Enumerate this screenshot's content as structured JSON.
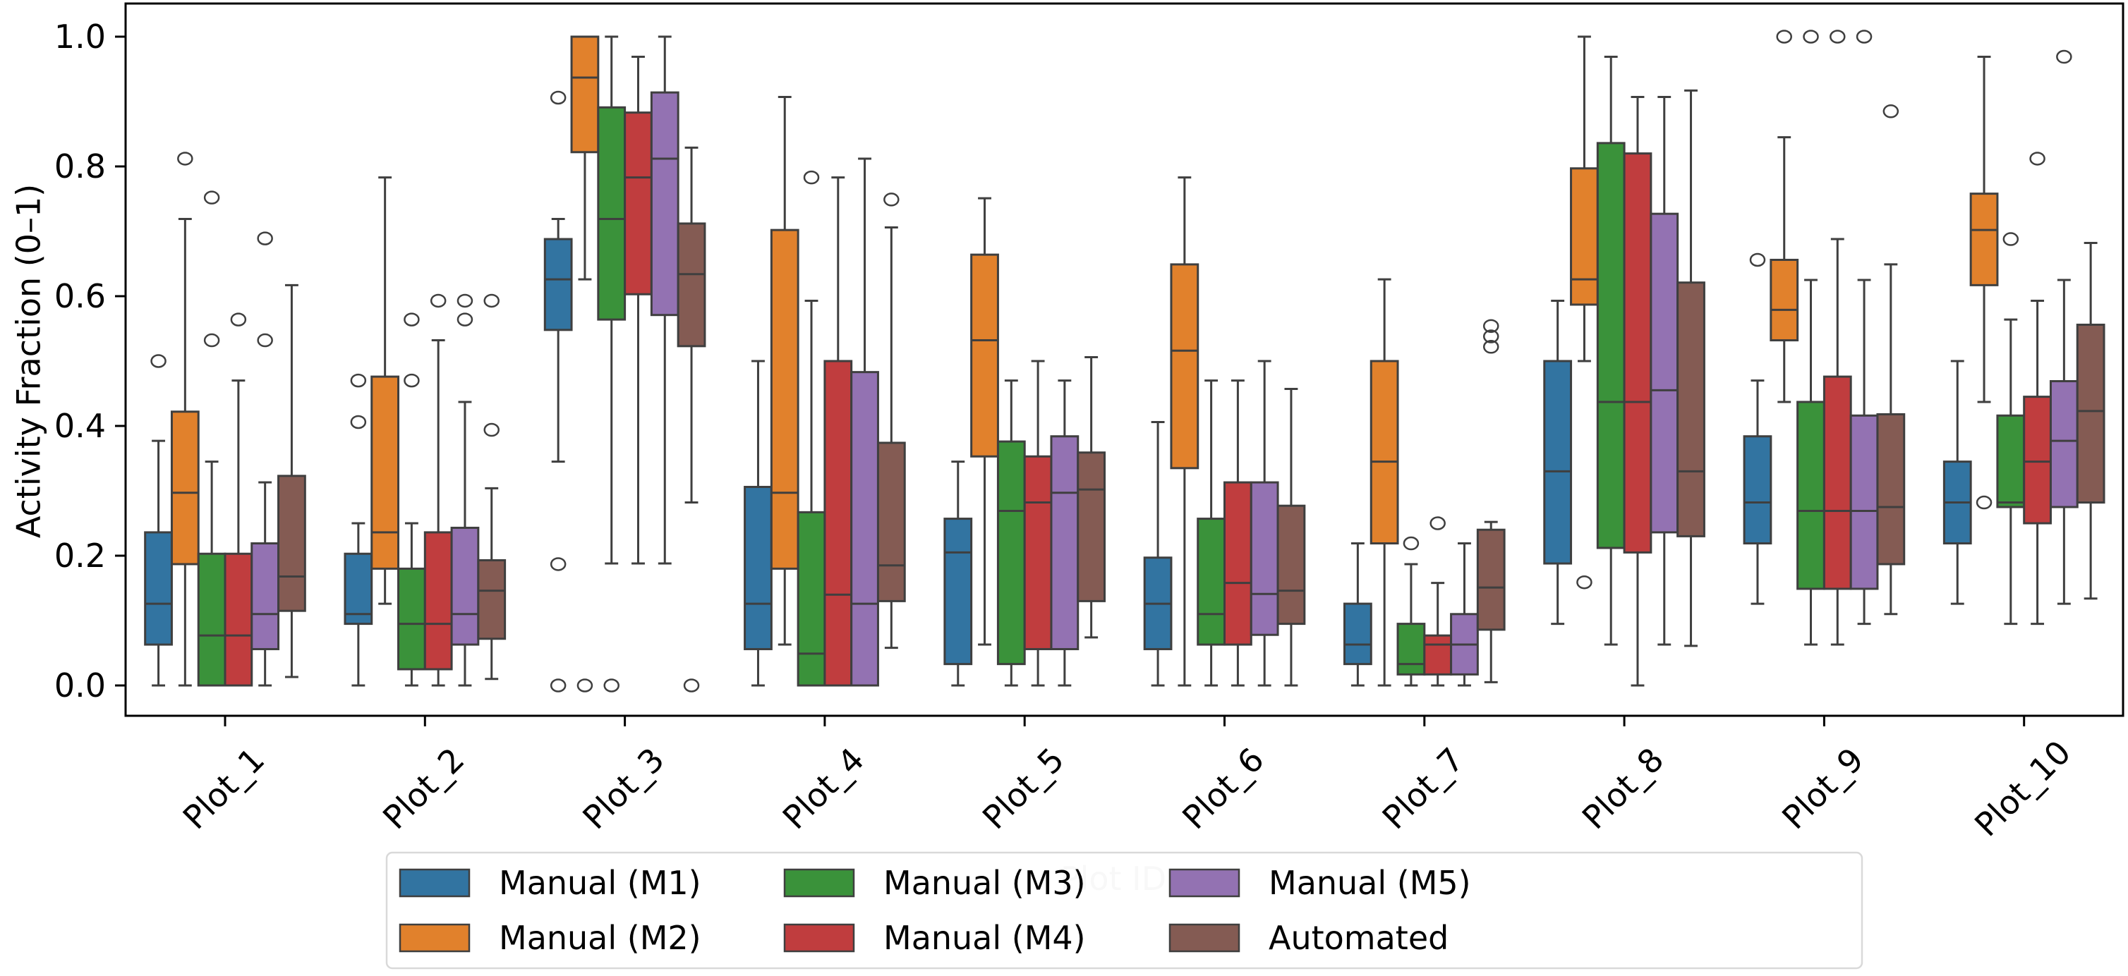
{
  "chart_data": {
    "type": "box",
    "title": "",
    "xlabel": "Plot ID",
    "ylabel": "Activity Fraction (0–1)",
    "ylim": [
      -0.047,
      1.051
    ],
    "yticks": [
      "0.0",
      "0.2",
      "0.4",
      "0.6",
      "0.8",
      "1.0"
    ],
    "ytick_values": [
      0.0,
      0.2,
      0.4,
      0.6,
      0.8,
      1.0
    ],
    "grid": false,
    "legend_position": "bottom-center (below axis, 4 columns)",
    "categories": [
      "Plot_1",
      "Plot_2",
      "Plot_3",
      "Plot_4",
      "Plot_5",
      "Plot_6",
      "Plot_7",
      "Plot_8",
      "Plot_9",
      "Plot_10"
    ],
    "series": [
      {
        "name": "Manual (M1)",
        "color": "#3274a1",
        "boxes": [
          {
            "whislo": 0.0,
            "q1": 0.063,
            "med": 0.126,
            "q3": 0.236,
            "whishi": 0.377,
            "fliers": [
              0.5
            ]
          },
          {
            "whislo": 0.0,
            "q1": 0.095,
            "med": 0.11,
            "q3": 0.203,
            "whishi": 0.25,
            "fliers": [
              0.406,
              0.47
            ]
          },
          {
            "whislo": 0.345,
            "q1": 0.548,
            "med": 0.626,
            "q3": 0.688,
            "whishi": 0.719,
            "fliers": [
              0.0,
              0.187,
              0.906
            ]
          },
          {
            "whislo": 0.0,
            "q1": 0.056,
            "med": 0.126,
            "q3": 0.306,
            "whishi": 0.5,
            "fliers": []
          },
          {
            "whislo": 0.0,
            "q1": 0.033,
            "med": 0.205,
            "q3": 0.257,
            "whishi": 0.345,
            "fliers": []
          },
          {
            "whislo": 0.0,
            "q1": 0.056,
            "med": 0.126,
            "q3": 0.197,
            "whishi": 0.406,
            "fliers": []
          },
          {
            "whislo": 0.0,
            "q1": 0.033,
            "med": 0.063,
            "q3": 0.126,
            "whishi": 0.219,
            "fliers": []
          },
          {
            "whislo": 0.095,
            "q1": 0.188,
            "med": 0.33,
            "q3": 0.5,
            "whishi": 0.593,
            "fliers": []
          },
          {
            "whislo": 0.126,
            "q1": 0.219,
            "med": 0.282,
            "q3": 0.384,
            "whishi": 0.47,
            "fliers": [
              0.656
            ]
          },
          {
            "whislo": 0.126,
            "q1": 0.219,
            "med": 0.282,
            "q3": 0.345,
            "whishi": 0.5,
            "fliers": []
          }
        ]
      },
      {
        "name": "Manual (M2)",
        "color": "#e1812c",
        "boxes": [
          {
            "whislo": 0.0,
            "q1": 0.187,
            "med": 0.297,
            "q3": 0.422,
            "whishi": 0.719,
            "fliers": [
              0.812
            ]
          },
          {
            "whislo": 0.126,
            "q1": 0.18,
            "med": 0.236,
            "q3": 0.476,
            "whishi": 0.783,
            "fliers": []
          },
          {
            "whislo": 0.626,
            "q1": 0.822,
            "med": 0.937,
            "q3": 1.0,
            "whishi": 1.0,
            "fliers": [
              0.0
            ]
          },
          {
            "whislo": 0.063,
            "q1": 0.18,
            "med": 0.297,
            "q3": 0.702,
            "whishi": 0.907,
            "fliers": []
          },
          {
            "whislo": 0.063,
            "q1": 0.353,
            "med": 0.532,
            "q3": 0.664,
            "whishi": 0.751,
            "fliers": []
          },
          {
            "whislo": 0.0,
            "q1": 0.335,
            "med": 0.516,
            "q3": 0.649,
            "whishi": 0.783,
            "fliers": []
          },
          {
            "whislo": 0.0,
            "q1": 0.219,
            "med": 0.345,
            "q3": 0.5,
            "whishi": 0.626,
            "fliers": []
          },
          {
            "whislo": 0.5,
            "q1": 0.587,
            "med": 0.626,
            "q3": 0.797,
            "whishi": 1.0,
            "fliers": [
              0.159
            ]
          },
          {
            "whislo": 0.437,
            "q1": 0.532,
            "med": 0.579,
            "q3": 0.656,
            "whishi": 0.845,
            "fliers": [
              1.0
            ]
          },
          {
            "whislo": 0.437,
            "q1": 0.617,
            "med": 0.702,
            "q3": 0.758,
            "whishi": 0.969,
            "fliers": [
              0.282
            ]
          }
        ]
      },
      {
        "name": "Manual (M3)",
        "color": "#3a923a",
        "boxes": [
          {
            "whislo": 0.0,
            "q1": 0.0,
            "med": 0.077,
            "q3": 0.203,
            "whishi": 0.345,
            "fliers": [
              0.532,
              0.752
            ]
          },
          {
            "whislo": 0.0,
            "q1": 0.025,
            "med": 0.095,
            "q3": 0.18,
            "whishi": 0.25,
            "fliers": [
              0.47,
              0.564
            ]
          },
          {
            "whislo": 0.188,
            "q1": 0.564,
            "med": 0.719,
            "q3": 0.891,
            "whishi": 1.0,
            "fliers": [
              0.0
            ]
          },
          {
            "whislo": 0.0,
            "q1": 0.0,
            "med": 0.049,
            "q3": 0.267,
            "whishi": 0.593,
            "fliers": [
              0.783
            ]
          },
          {
            "whislo": 0.0,
            "q1": 0.033,
            "med": 0.269,
            "q3": 0.376,
            "whishi": 0.47,
            "fliers": []
          },
          {
            "whislo": 0.0,
            "q1": 0.063,
            "med": 0.11,
            "q3": 0.257,
            "whishi": 0.47,
            "fliers": []
          },
          {
            "whislo": 0.0,
            "q1": 0.017,
            "med": 0.033,
            "q3": 0.095,
            "whishi": 0.187,
            "fliers": [
              0.219
            ]
          },
          {
            "whislo": 0.063,
            "q1": 0.212,
            "med": 0.437,
            "q3": 0.836,
            "whishi": 0.969,
            "fliers": []
          },
          {
            "whislo": 0.063,
            "q1": 0.149,
            "med": 0.269,
            "q3": 0.437,
            "whishi": 0.625,
            "fliers": [
              1.0
            ]
          },
          {
            "whislo": 0.095,
            "q1": 0.275,
            "med": 0.282,
            "q3": 0.416,
            "whishi": 0.564,
            "fliers": [
              0.688
            ]
          }
        ]
      },
      {
        "name": "Manual (M4)",
        "color": "#c03d3e",
        "boxes": [
          {
            "whislo": 0.0,
            "q1": 0.0,
            "med": 0.077,
            "q3": 0.203,
            "whishi": 0.47,
            "fliers": [
              0.564
            ]
          },
          {
            "whislo": 0.0,
            "q1": 0.025,
            "med": 0.095,
            "q3": 0.236,
            "whishi": 0.532,
            "fliers": [
              0.593
            ]
          },
          {
            "whislo": 0.188,
            "q1": 0.603,
            "med": 0.783,
            "q3": 0.883,
            "whishi": 0.969,
            "fliers": []
          },
          {
            "whislo": 0.0,
            "q1": 0.0,
            "med": 0.14,
            "q3": 0.5,
            "whishi": 0.783,
            "fliers": []
          },
          {
            "whislo": 0.0,
            "q1": 0.056,
            "med": 0.282,
            "q3": 0.353,
            "whishi": 0.5,
            "fliers": []
          },
          {
            "whislo": 0.0,
            "q1": 0.063,
            "med": 0.158,
            "q3": 0.313,
            "whishi": 0.47,
            "fliers": []
          },
          {
            "whislo": 0.0,
            "q1": 0.017,
            "med": 0.063,
            "q3": 0.077,
            "whishi": 0.158,
            "fliers": [
              0.25
            ]
          },
          {
            "whislo": 0.0,
            "q1": 0.205,
            "med": 0.437,
            "q3": 0.82,
            "whishi": 0.907,
            "fliers": []
          },
          {
            "whislo": 0.063,
            "q1": 0.149,
            "med": 0.269,
            "q3": 0.476,
            "whishi": 0.688,
            "fliers": [
              1.0
            ]
          },
          {
            "whislo": 0.095,
            "q1": 0.25,
            "med": 0.345,
            "q3": 0.445,
            "whishi": 0.593,
            "fliers": [
              0.812
            ]
          }
        ]
      },
      {
        "name": "Manual (M5)",
        "color": "#9372b2",
        "boxes": [
          {
            "whislo": 0.0,
            "q1": 0.056,
            "med": 0.11,
            "q3": 0.219,
            "whishi": 0.313,
            "fliers": [
              0.532,
              0.689
            ]
          },
          {
            "whislo": 0.0,
            "q1": 0.063,
            "med": 0.11,
            "q3": 0.243,
            "whishi": 0.437,
            "fliers": [
              0.564,
              0.593
            ]
          },
          {
            "whislo": 0.188,
            "q1": 0.571,
            "med": 0.812,
            "q3": 0.914,
            "whishi": 1.0,
            "fliers": []
          },
          {
            "whislo": 0.0,
            "q1": 0.0,
            "med": 0.126,
            "q3": 0.483,
            "whishi": 0.812,
            "fliers": []
          },
          {
            "whislo": 0.0,
            "q1": 0.056,
            "med": 0.297,
            "q3": 0.384,
            "whishi": 0.47,
            "fliers": []
          },
          {
            "whislo": 0.0,
            "q1": 0.078,
            "med": 0.141,
            "q3": 0.313,
            "whishi": 0.5,
            "fliers": []
          },
          {
            "whislo": 0.0,
            "q1": 0.017,
            "med": 0.063,
            "q3": 0.11,
            "whishi": 0.219,
            "fliers": []
          },
          {
            "whislo": 0.063,
            "q1": 0.236,
            "med": 0.455,
            "q3": 0.727,
            "whishi": 0.907,
            "fliers": []
          },
          {
            "whislo": 0.095,
            "q1": 0.149,
            "med": 0.269,
            "q3": 0.416,
            "whishi": 0.625,
            "fliers": [
              1.0
            ]
          },
          {
            "whislo": 0.126,
            "q1": 0.275,
            "med": 0.377,
            "q3": 0.469,
            "whishi": 0.625,
            "fliers": [
              0.969
            ]
          }
        ]
      },
      {
        "name": "Automated",
        "color": "#845b53",
        "boxes": [
          {
            "whislo": 0.013,
            "q1": 0.115,
            "med": 0.168,
            "q3": 0.323,
            "whishi": 0.617,
            "fliers": []
          },
          {
            "whislo": 0.01,
            "q1": 0.072,
            "med": 0.146,
            "q3": 0.193,
            "whishi": 0.304,
            "fliers": [
              0.394,
              0.593
            ]
          },
          {
            "whislo": 0.282,
            "q1": 0.523,
            "med": 0.634,
            "q3": 0.712,
            "whishi": 0.829,
            "fliers": [
              0.0
            ]
          },
          {
            "whislo": 0.058,
            "q1": 0.13,
            "med": 0.185,
            "q3": 0.374,
            "whishi": 0.706,
            "fliers": [
              0.749
            ]
          },
          {
            "whislo": 0.074,
            "q1": 0.13,
            "med": 0.302,
            "q3": 0.359,
            "whishi": 0.506,
            "fliers": []
          },
          {
            "whislo": 0.0,
            "q1": 0.095,
            "med": 0.146,
            "q3": 0.277,
            "whishi": 0.457,
            "fliers": []
          },
          {
            "whislo": 0.005,
            "q1": 0.086,
            "med": 0.151,
            "q3": 0.24,
            "whishi": 0.252,
            "fliers": [
              0.522,
              0.538,
              0.554
            ]
          },
          {
            "whislo": 0.061,
            "q1": 0.23,
            "med": 0.33,
            "q3": 0.621,
            "whishi": 0.917,
            "fliers": []
          },
          {
            "whislo": 0.11,
            "q1": 0.187,
            "med": 0.275,
            "q3": 0.418,
            "whishi": 0.649,
            "fliers": [
              0.885
            ]
          },
          {
            "whislo": 0.134,
            "q1": 0.282,
            "med": 0.423,
            "q3": 0.556,
            "whishi": 0.682,
            "fliers": []
          }
        ]
      }
    ]
  },
  "legend": {
    "items": [
      {
        "label": "Manual (M1)",
        "color": "#3274a1"
      },
      {
        "label": "Manual (M2)",
        "color": "#e1812c"
      },
      {
        "label": "Manual (M3)",
        "color": "#3a923a"
      },
      {
        "label": "Manual (M4)",
        "color": "#c03d3e"
      },
      {
        "label": "Manual (M5)",
        "color": "#9372b2"
      },
      {
        "label": "Automated",
        "color": "#845b53"
      }
    ]
  }
}
